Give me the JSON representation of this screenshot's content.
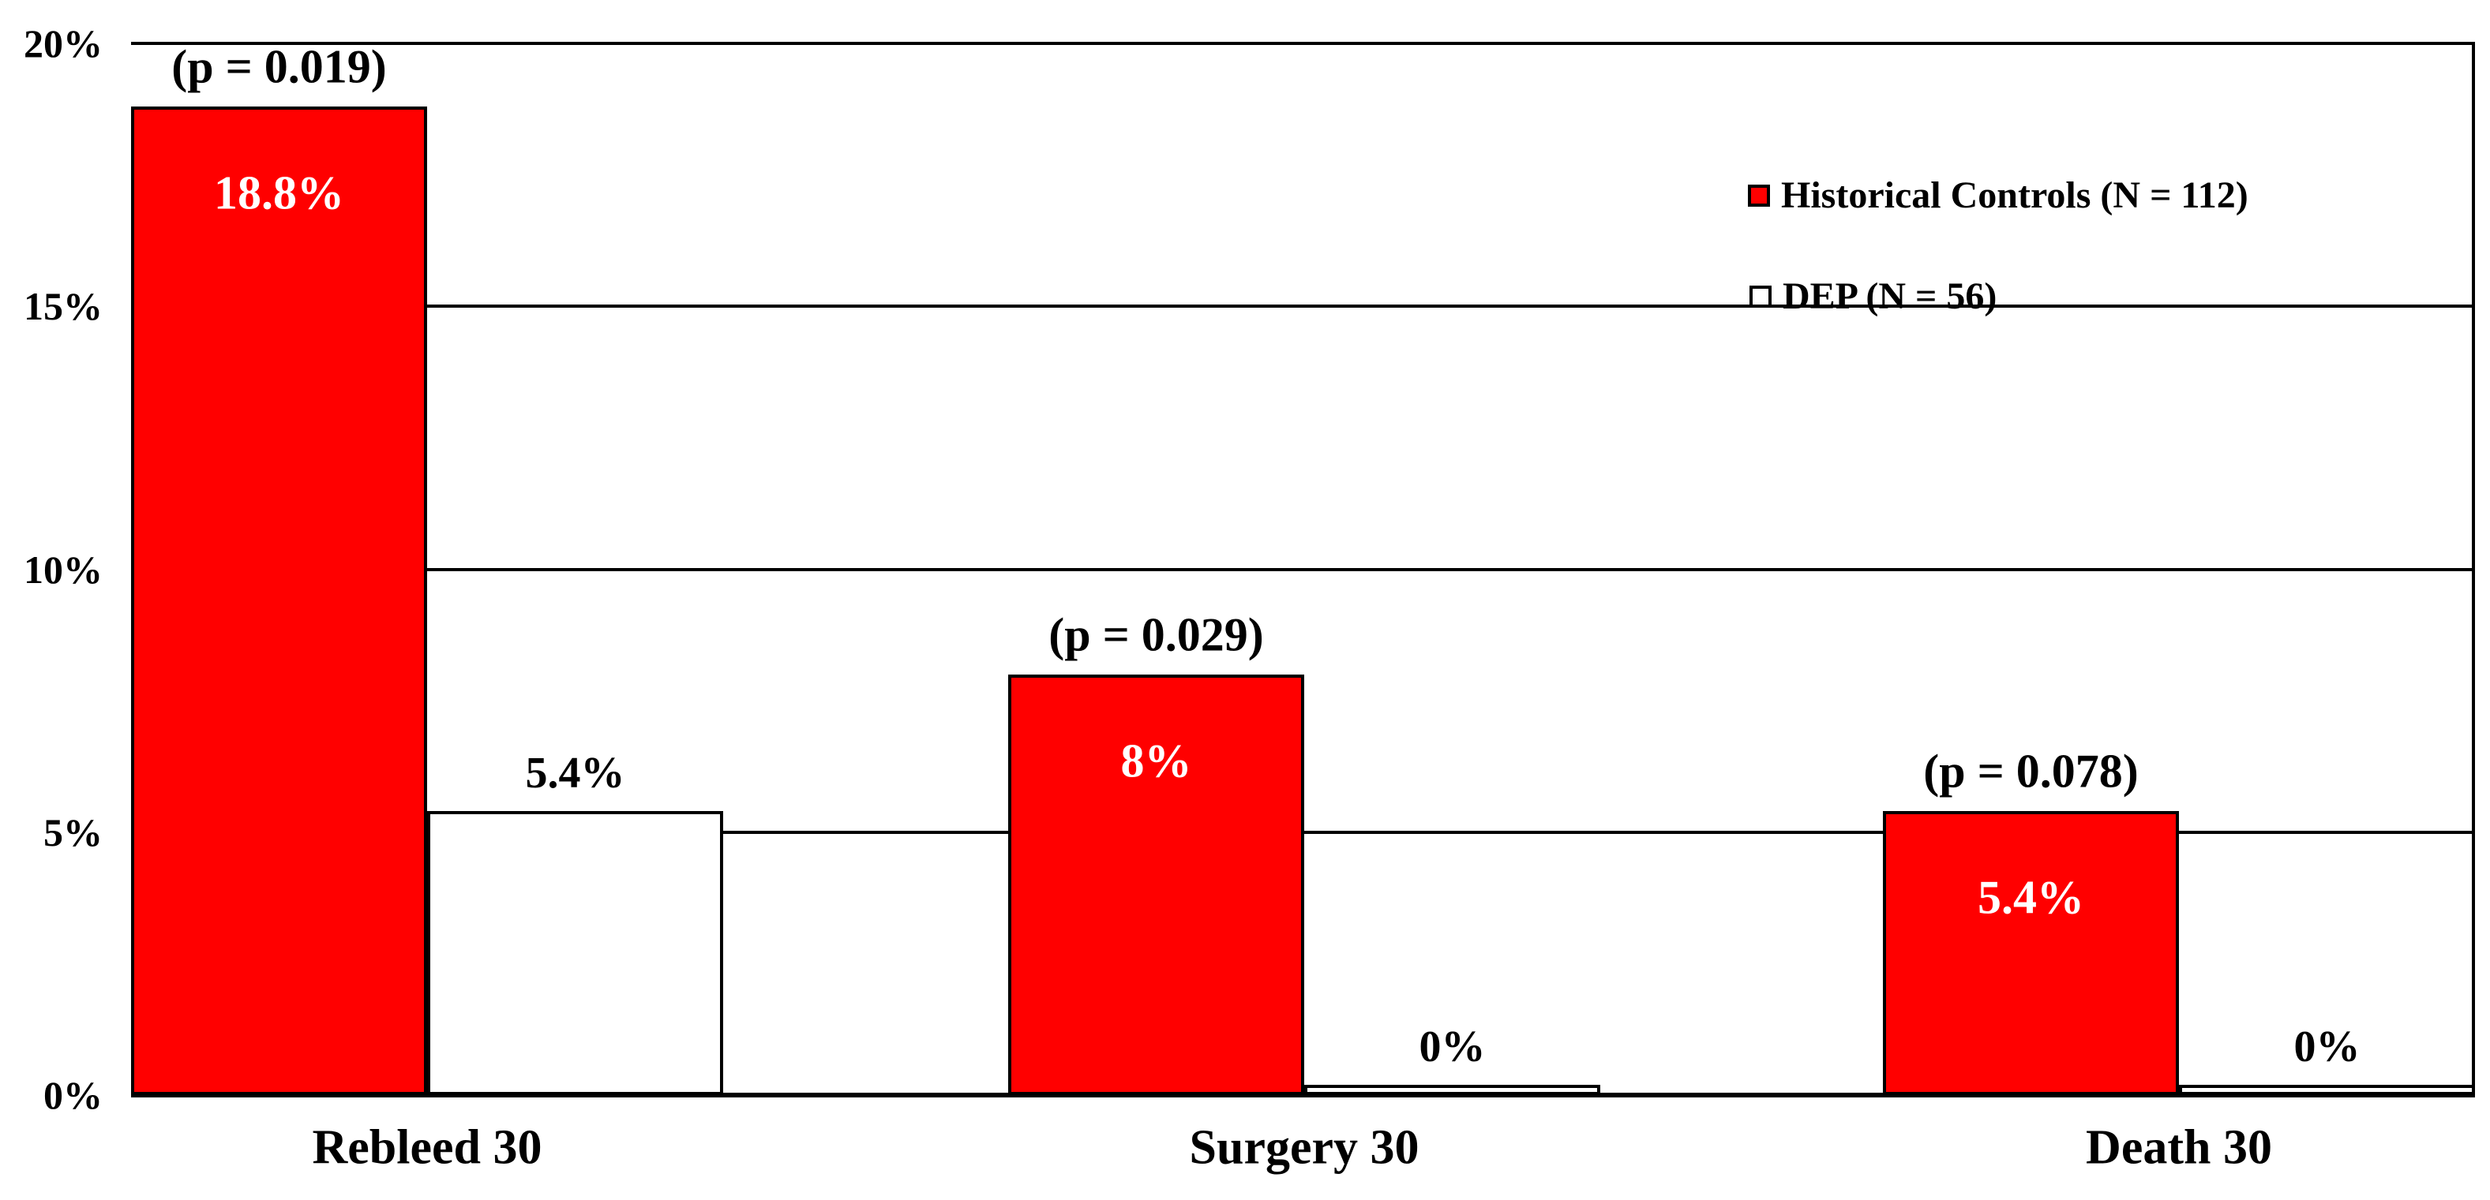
{
  "chart_data": {
    "type": "bar",
    "title": "",
    "categories": [
      "Rebleed 30",
      "Surgery 30",
      "Death 30"
    ],
    "series": [
      {
        "name": "Historical Controls (N = 112)",
        "color": "#ff0000",
        "values": [
          18.8,
          8,
          5.4
        ],
        "labels": [
          "18.8%",
          "8%",
          "5.4%"
        ],
        "label_color": "#ffffff",
        "p_values": [
          "(p = 0.019)",
          "(p = 0.029)",
          "(p = 0.078)"
        ]
      },
      {
        "name": "DEP (N = 56)",
        "color": "#ffffff",
        "values": [
          5.4,
          0,
          0
        ],
        "labels": [
          "5.4%",
          "0%",
          "0%"
        ],
        "label_color": "#000000"
      }
    ],
    "ylim": [
      0,
      20
    ],
    "yticks": [
      "0%",
      "5%",
      "10%",
      "15%",
      "20%"
    ],
    "ytick_values": [
      0,
      5,
      10,
      15,
      20
    ],
    "grid": true,
    "legend_position": "upper-right",
    "axis_color": "#000000",
    "background_color": "#ffffff"
  }
}
